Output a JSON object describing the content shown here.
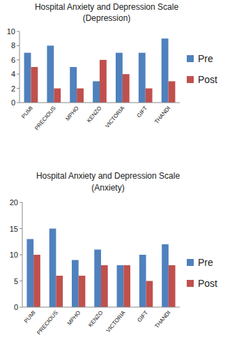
{
  "chart_data": [
    {
      "type": "bar",
      "title": "Hospital Anxiety and Depression Scale",
      "subtitle": "(Depression)",
      "categories": [
        "PUMI",
        "PRECIOUS",
        "MPHO",
        "KENZO",
        "VICTORIA",
        "GIFT",
        "THANDI"
      ],
      "series": [
        {
          "name": "Pre",
          "color": "#4f81bd",
          "values": [
            7,
            8,
            5,
            3,
            7,
            7,
            9
          ]
        },
        {
          "name": "Post",
          "color": "#c0504d",
          "values": [
            5,
            2,
            2,
            6,
            4,
            2,
            3
          ]
        }
      ],
      "ylim": [
        0,
        10
      ],
      "yticks": [
        0,
        2,
        4,
        6,
        8,
        10
      ],
      "grid": false,
      "legend": "right"
    },
    {
      "type": "bar",
      "title": "Hospital Anxiety and Depression Scale",
      "subtitle": "(Anxiety)",
      "categories": [
        "PUMI",
        "PRECIOUS",
        "MPHO",
        "KENZO",
        "VICTORIA",
        "GIFT",
        "THANDI"
      ],
      "series": [
        {
          "name": "Pre",
          "color": "#4f81bd",
          "values": [
            13,
            15,
            9,
            11,
            8,
            10,
            12
          ]
        },
        {
          "name": "Post",
          "color": "#c0504d",
          "values": [
            10,
            6,
            6,
            8,
            8,
            5,
            8
          ]
        }
      ],
      "ylim": [
        0,
        20
      ],
      "yticks": [
        0,
        5,
        10,
        15,
        20
      ],
      "grid": false,
      "legend": "right"
    }
  ]
}
